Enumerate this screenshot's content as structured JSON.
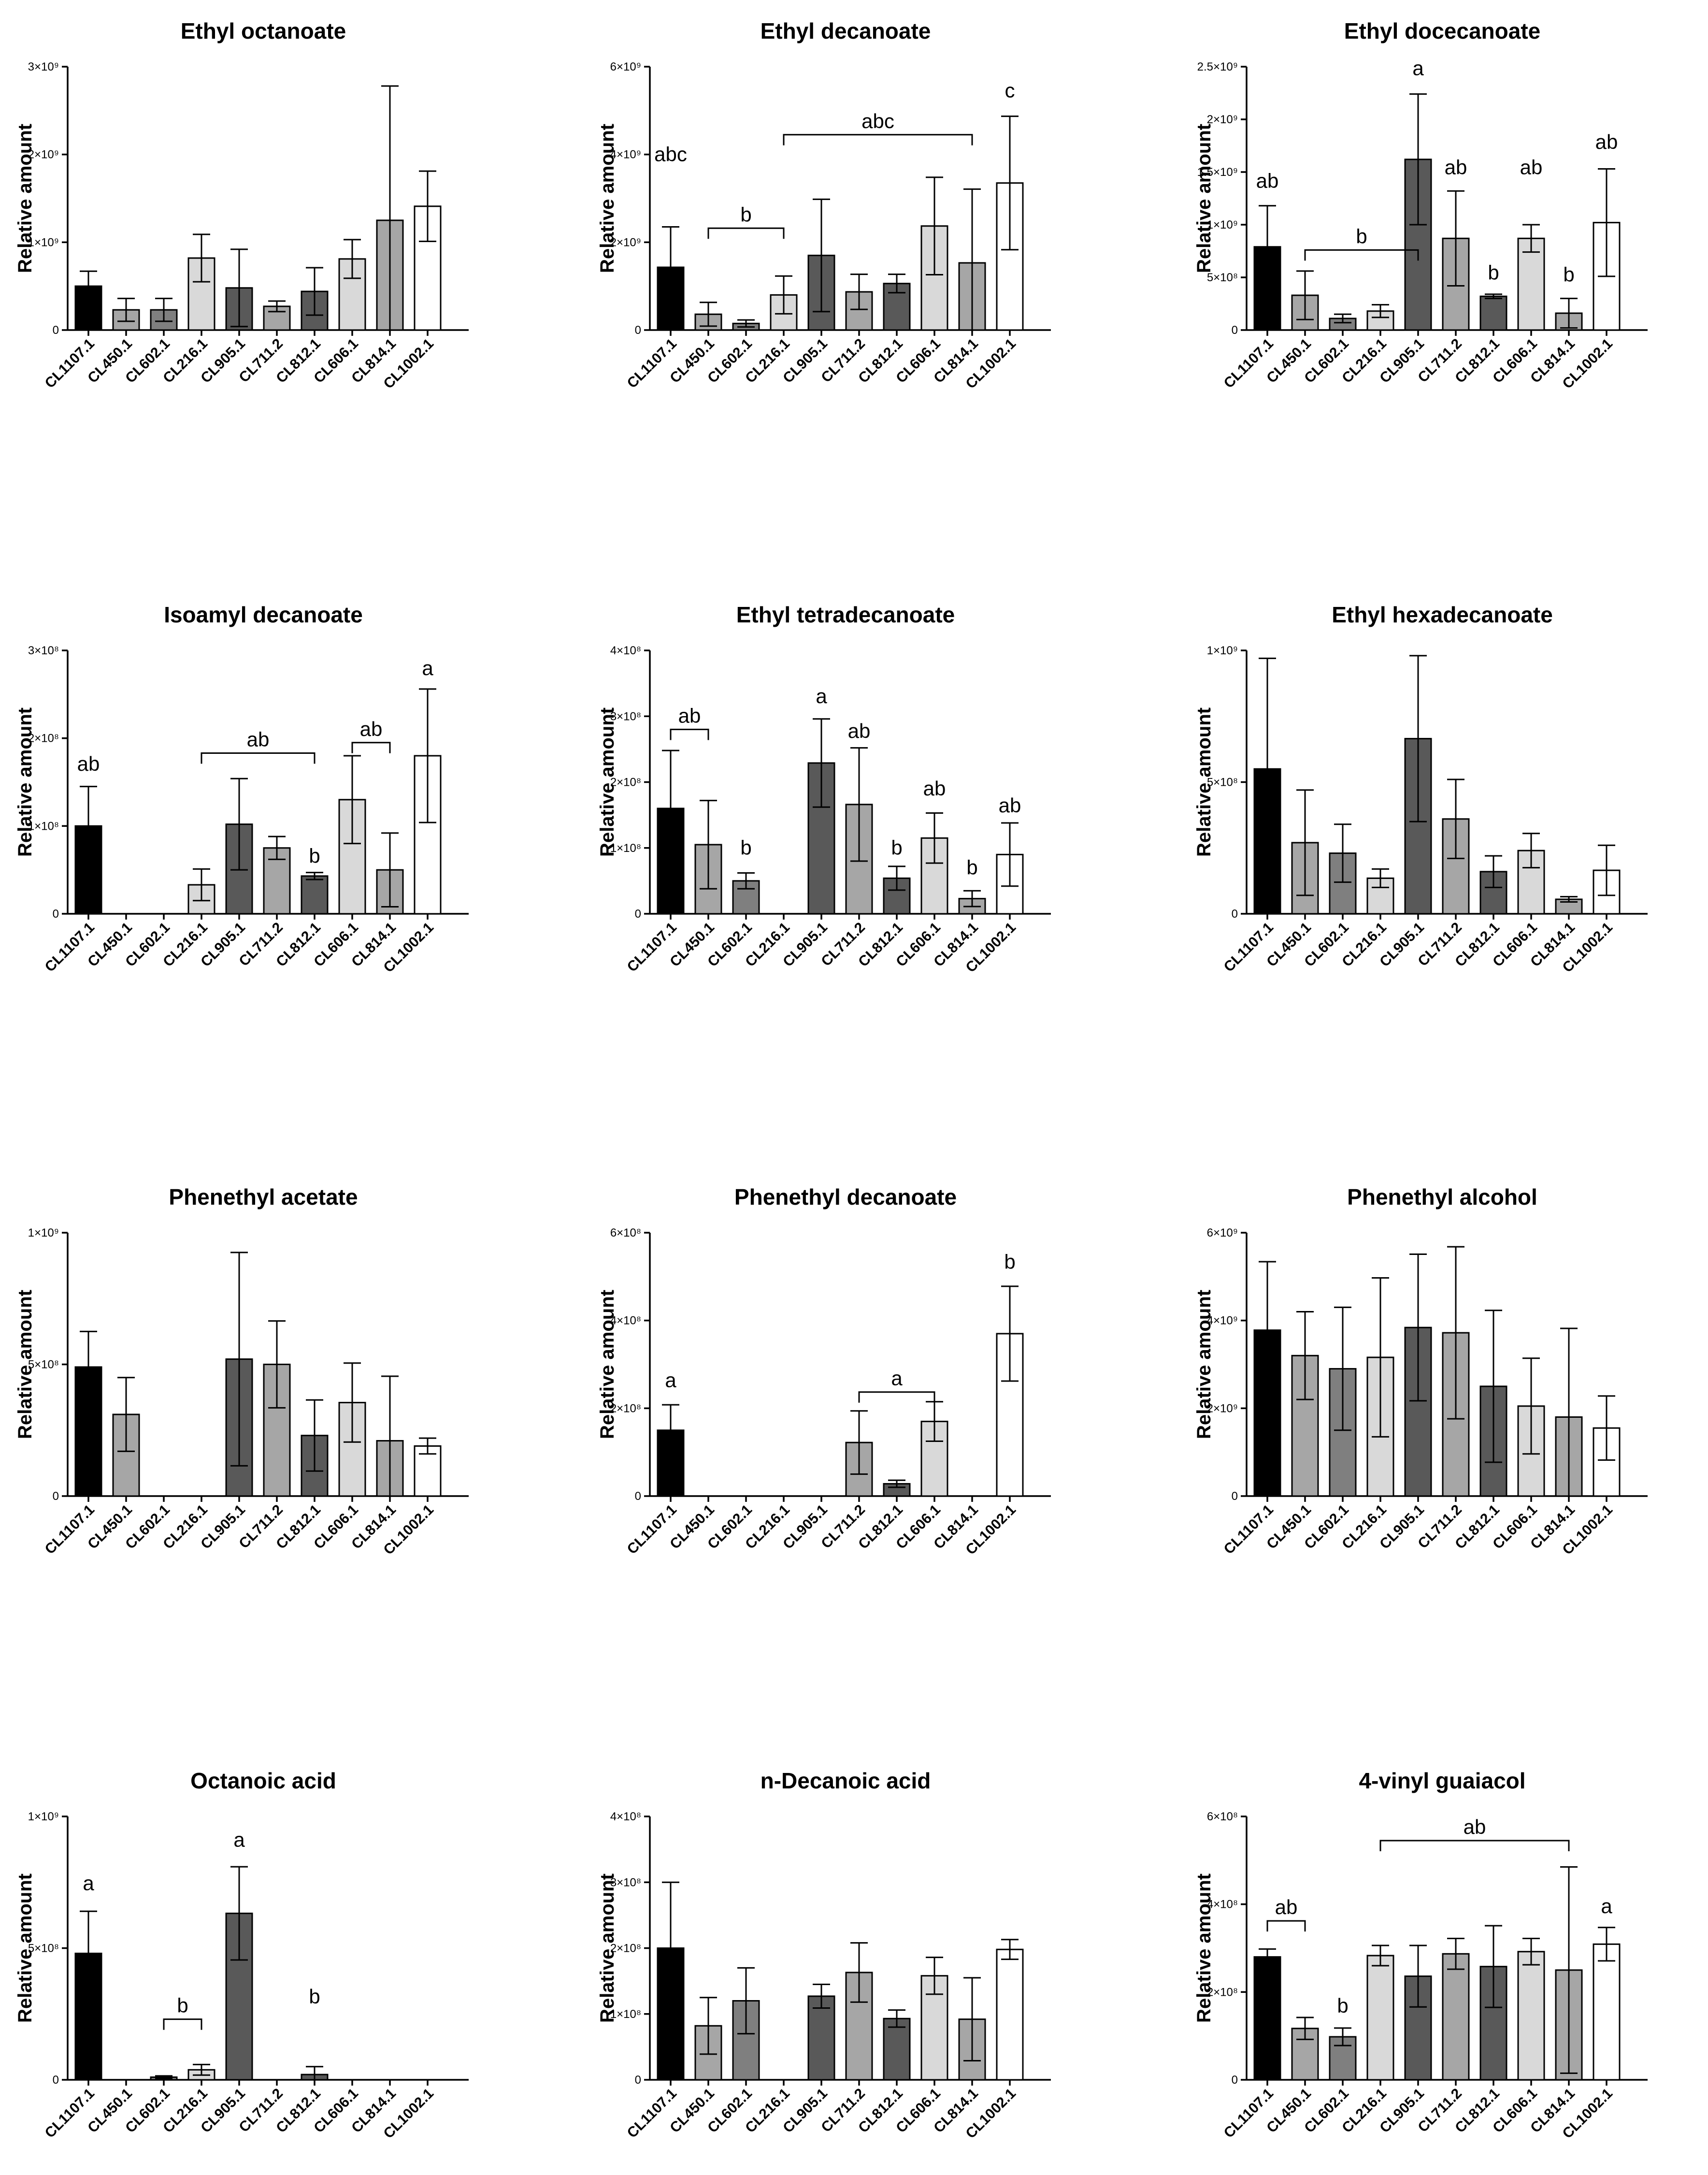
{
  "chart_data": [
    {
      "type": "bar",
      "title": "Ethyl octanoate",
      "ylabel": "Relative amount",
      "categories": [
        "CL1107.1",
        "CL450.1",
        "CL602.1",
        "CL216.1",
        "CL905.1",
        "CL711.2",
        "CL812.1",
        "CL606.1",
        "CL814.1",
        "CL1002.1"
      ],
      "values": [
        500000000,
        230000000,
        230000000,
        820000000,
        480000000,
        270000000,
        440000000,
        810000000,
        1250000000,
        1410000000
      ],
      "errors": [
        170000000,
        130000000,
        130000000,
        270000000,
        440000000,
        60000000,
        270000000,
        220000000,
        1530000000,
        400000000
      ],
      "ylim": [
        0,
        3000000000
      ],
      "yticks": [
        0,
        1000000000,
        2000000000,
        3000000000
      ],
      "ytick_labels": [
        "0",
        "1×10⁹",
        "2×10⁹",
        "3×10⁹"
      ],
      "bar_colors": [
        "#000000",
        "#a6a6a6",
        "#7f7f7f",
        "#d9d9d9",
        "#595959",
        "#a6a6a6",
        "#595959",
        "#d9d9d9",
        "#a6a6a6",
        "#ffffff"
      ],
      "annotations": []
    },
    {
      "type": "bar",
      "title": "Ethyl decanoate",
      "ylabel": "Relative amount",
      "categories": [
        "CL1107.1",
        "CL450.1",
        "CL602.1",
        "CL216.1",
        "CL905.1",
        "CL711.2",
        "CL812.1",
        "CL606.1",
        "CL814.1",
        "CL1002.1"
      ],
      "values": [
        1430000000,
        360000000,
        150000000,
        800000000,
        1700000000,
        870000000,
        1060000000,
        2370000000,
        1530000000,
        3350000000
      ],
      "errors": [
        920000000,
        270000000,
        80000000,
        430000000,
        1280000000,
        400000000,
        210000000,
        1110000000,
        1680000000,
        1520000000
      ],
      "ylim": [
        0,
        6000000000
      ],
      "yticks": [
        0,
        2000000000,
        4000000000,
        6000000000
      ],
      "ytick_labels": [
        "0",
        "2×10⁹",
        "4×10⁹",
        "6×10⁹"
      ],
      "bar_colors": [
        "#000000",
        "#a6a6a6",
        "#7f7f7f",
        "#d9d9d9",
        "#595959",
        "#a6a6a6",
        "#595959",
        "#d9d9d9",
        "#a6a6a6",
        "#ffffff"
      ],
      "annotations": [
        {
          "text": "abc",
          "from": 0,
          "to": 0,
          "y": 3850000000,
          "bracket": false
        },
        {
          "text": "b",
          "from": 1,
          "to": 3,
          "y": 2320000000,
          "bracket": true
        },
        {
          "text": "abc",
          "from": 3,
          "to": 8,
          "y": 4450000000,
          "bracket": true
        },
        {
          "text": "c",
          "from": 9,
          "to": 9,
          "y": 5300000000,
          "bracket": false
        }
      ]
    },
    {
      "type": "bar",
      "title": "Ethyl docecanoate",
      "ylabel": "Relative amount",
      "categories": [
        "CL1107.1",
        "CL450.1",
        "CL602.1",
        "CL216.1",
        "CL905.1",
        "CL711.2",
        "CL812.1",
        "CL606.1",
        "CL814.1",
        "CL1002.1"
      ],
      "values": [
        790000000,
        330000000,
        110000000,
        180000000,
        1620000000,
        870000000,
        320000000,
        870000000,
        160000000,
        1020000000
      ],
      "errors": [
        390000000,
        230000000,
        40000000,
        60000000,
        620000000,
        450000000,
        20000000,
        130000000,
        140000000,
        510000000
      ],
      "ylim": [
        0,
        2500000000
      ],
      "yticks": [
        0,
        500000000,
        1000000000,
        1500000000,
        2000000000,
        2500000000
      ],
      "ytick_labels": [
        "0",
        "5×10⁸",
        "1×10⁹",
        "1.5×10⁹",
        "2×10⁹",
        "2.5×10⁹"
      ],
      "bar_colors": [
        "#000000",
        "#a6a6a6",
        "#7f7f7f",
        "#d9d9d9",
        "#595959",
        "#a6a6a6",
        "#595959",
        "#d9d9d9",
        "#a6a6a6",
        "#ffffff"
      ],
      "annotations": [
        {
          "text": "ab",
          "from": 0,
          "to": 0,
          "y": 1350000000,
          "bracket": false
        },
        {
          "text": "b",
          "from": 1,
          "to": 4,
          "y": 760000000,
          "bracket": true
        },
        {
          "text": "a",
          "from": 4,
          "to": 4,
          "y": 2420000000,
          "bracket": false
        },
        {
          "text": "ab",
          "from": 5,
          "to": 5,
          "y": 1480000000,
          "bracket": false
        },
        {
          "text": "b",
          "from": 6,
          "to": 6,
          "y": 480000000,
          "bracket": false
        },
        {
          "text": "ab",
          "from": 7,
          "to": 7,
          "y": 1480000000,
          "bracket": false
        },
        {
          "text": "b",
          "from": 8,
          "to": 8,
          "y": 460000000,
          "bracket": false
        },
        {
          "text": "ab",
          "from": 9,
          "to": 9,
          "y": 1720000000,
          "bracket": false
        }
      ]
    },
    {
      "type": "bar",
      "title": "Isoamyl decanoate",
      "ylabel": "Relative amount",
      "categories": [
        "CL1107.1",
        "CL450.1",
        "CL602.1",
        "CL216.1",
        "CL905.1",
        "CL711.2",
        "CL812.1",
        "CL606.1",
        "CL814.1",
        "CL1002.1"
      ],
      "values": [
        100000000,
        0,
        0,
        33000000,
        102000000,
        75000000,
        43000000,
        130000000,
        50000000,
        180000000
      ],
      "errors": [
        45000000,
        0,
        0,
        18000000,
        52000000,
        13000000,
        4000000,
        50000000,
        42000000,
        76000000
      ],
      "ylim": [
        0,
        300000000
      ],
      "yticks": [
        0,
        100000000,
        200000000,
        300000000
      ],
      "ytick_labels": [
        "0",
        "1×10⁸",
        "2×10⁸",
        "3×10⁸"
      ],
      "bar_colors": [
        "#000000",
        "#a6a6a6",
        "#7f7f7f",
        "#d9d9d9",
        "#595959",
        "#a6a6a6",
        "#595959",
        "#d9d9d9",
        "#a6a6a6",
        "#ffffff"
      ],
      "annotations": [
        {
          "text": "ab",
          "from": 0,
          "to": 0,
          "y": 163000000,
          "bracket": false
        },
        {
          "text": "ab",
          "from": 3,
          "to": 6,
          "y": 183000000,
          "bracket": true
        },
        {
          "text": "b",
          "from": 6,
          "to": 6,
          "y": 58000000,
          "bracket": false
        },
        {
          "text": "ab",
          "from": 7,
          "to": 8,
          "y": 195000000,
          "bracket": true
        },
        {
          "text": "a",
          "from": 9,
          "to": 9,
          "y": 272000000,
          "bracket": false
        }
      ]
    },
    {
      "type": "bar",
      "title": "Ethyl tetradecanoate",
      "ylabel": "Relative amount",
      "categories": [
        "CL1107.1",
        "CL450.1",
        "CL602.1",
        "CL216.1",
        "CL905.1",
        "CL711.2",
        "CL812.1",
        "CL606.1",
        "CL814.1",
        "CL1002.1"
      ],
      "values": [
        160000000,
        105000000,
        50000000,
        0,
        229000000,
        166000000,
        54000000,
        115000000,
        23000000,
        90000000
      ],
      "errors": [
        88000000,
        67000000,
        12000000,
        0,
        67000000,
        86000000,
        18000000,
        38000000,
        12000000,
        48000000
      ],
      "ylim": [
        0,
        400000000
      ],
      "yticks": [
        0,
        100000000,
        200000000,
        300000000,
        400000000
      ],
      "ytick_labels": [
        "0",
        "1×10⁸",
        "2×10⁸",
        "3×10⁸",
        "4×10⁸"
      ],
      "bar_colors": [
        "#000000",
        "#a6a6a6",
        "#7f7f7f",
        "#d9d9d9",
        "#595959",
        "#a6a6a6",
        "#595959",
        "#d9d9d9",
        "#a6a6a6",
        "#ffffff"
      ],
      "annotations": [
        {
          "text": "ab",
          "from": 0,
          "to": 1,
          "y": 280000000,
          "bracket": true
        },
        {
          "text": "b",
          "from": 2,
          "to": 2,
          "y": 90000000,
          "bracket": false
        },
        {
          "text": "a",
          "from": 4,
          "to": 4,
          "y": 320000000,
          "bracket": false
        },
        {
          "text": "ab",
          "from": 5,
          "to": 5,
          "y": 267000000,
          "bracket": false
        },
        {
          "text": "b",
          "from": 6,
          "to": 6,
          "y": 90000000,
          "bracket": false
        },
        {
          "text": "ab",
          "from": 7,
          "to": 7,
          "y": 180000000,
          "bracket": false
        },
        {
          "text": "b",
          "from": 8,
          "to": 8,
          "y": 60000000,
          "bracket": false
        },
        {
          "text": "ab",
          "from": 9,
          "to": 9,
          "y": 154000000,
          "bracket": false
        }
      ]
    },
    {
      "type": "bar",
      "title": "Ethyl hexadecanoate",
      "ylabel": "Relative amount",
      "categories": [
        "CL1107.1",
        "CL450.1",
        "CL602.1",
        "CL216.1",
        "CL905.1",
        "CL711.2",
        "CL812.1",
        "CL606.1",
        "CL814.1",
        "CL1002.1"
      ],
      "values": [
        550000000,
        270000000,
        230000000,
        135000000,
        665000000,
        360000000,
        160000000,
        240000000,
        55000000,
        165000000
      ],
      "errors": [
        420000000,
        200000000,
        110000000,
        35000000,
        315000000,
        150000000,
        60000000,
        65000000,
        10000000,
        95000000
      ],
      "ylim": [
        0,
        1000000000
      ],
      "yticks": [
        0,
        500000000,
        1000000000
      ],
      "ytick_labels": [
        "0",
        "5×10⁸",
        "1×10⁹"
      ],
      "bar_colors": [
        "#000000",
        "#a6a6a6",
        "#7f7f7f",
        "#d9d9d9",
        "#595959",
        "#a6a6a6",
        "#595959",
        "#d9d9d9",
        "#a6a6a6",
        "#ffffff"
      ],
      "annotations": []
    },
    {
      "type": "bar",
      "title": "Phenethyl acetate",
      "ylabel": "Relative amount",
      "categories": [
        "CL1107.1",
        "CL450.1",
        "CL602.1",
        "CL216.1",
        "CL905.1",
        "CL711.2",
        "CL812.1",
        "CL606.1",
        "CL814.1",
        "CL1002.1"
      ],
      "values": [
        490000000,
        310000000,
        0,
        0,
        520000000,
        500000000,
        230000000,
        355000000,
        210000000,
        190000000
      ],
      "errors": [
        135000000,
        140000000,
        0,
        0,
        405000000,
        165000000,
        135000000,
        150000000,
        245000000,
        30000000
      ],
      "ylim": [
        0,
        1000000000
      ],
      "yticks": [
        0,
        500000000,
        1000000000
      ],
      "ytick_labels": [
        "0",
        "5×10⁸",
        "1×10⁹"
      ],
      "bar_colors": [
        "#000000",
        "#a6a6a6",
        "#7f7f7f",
        "#d9d9d9",
        "#595959",
        "#a6a6a6",
        "#595959",
        "#d9d9d9",
        "#a6a6a6",
        "#ffffff"
      ],
      "annotations": []
    },
    {
      "type": "bar",
      "title": "Phenethyl decanoate",
      "ylabel": "Relative amount",
      "categories": [
        "CL1107.1",
        "CL450.1",
        "CL602.1",
        "CL216.1",
        "CL905.1",
        "CL711.2",
        "CL812.1",
        "CL606.1",
        "CL814.1",
        "CL1002.1"
      ],
      "values": [
        150000000,
        0,
        0,
        0,
        0,
        122000000,
        28000000,
        170000000,
        0,
        370000000
      ],
      "errors": [
        58000000,
        0,
        0,
        0,
        0,
        72000000,
        8000000,
        45000000,
        0,
        108000000
      ],
      "ylim": [
        0,
        600000000
      ],
      "yticks": [
        0,
        200000000,
        400000000,
        600000000
      ],
      "ytick_labels": [
        "0",
        "2×10⁸",
        "4×10⁸",
        "6×10⁸"
      ],
      "bar_colors": [
        "#000000",
        "#a6a6a6",
        "#7f7f7f",
        "#d9d9d9",
        "#595959",
        "#a6a6a6",
        "#595959",
        "#d9d9d9",
        "#a6a6a6",
        "#ffffff"
      ],
      "annotations": [
        {
          "text": "a",
          "from": 0,
          "to": 0,
          "y": 248000000,
          "bracket": false
        },
        {
          "text": "a",
          "from": 5,
          "to": 7,
          "y": 237000000,
          "bracket": true
        },
        {
          "text": "b",
          "from": 9,
          "to": 9,
          "y": 518000000,
          "bracket": false
        }
      ]
    },
    {
      "type": "bar",
      "title": "Phenethyl alcohol",
      "ylabel": "Relative amount",
      "categories": [
        "CL1107.1",
        "CL450.1",
        "CL602.1",
        "CL216.1",
        "CL905.1",
        "CL711.2",
        "CL812.1",
        "CL606.1",
        "CL814.1",
        "CL1002.1"
      ],
      "values": [
        3780000000,
        3200000000,
        2900000000,
        3160000000,
        3840000000,
        3720000000,
        2500000000,
        2050000000,
        1800000000,
        1550000000
      ],
      "errors": [
        1560000000,
        1000000000,
        1400000000,
        1810000000,
        1670000000,
        1960000000,
        1730000000,
        1090000000,
        2020000000,
        730000000
      ],
      "ylim": [
        0,
        6000000000
      ],
      "yticks": [
        0,
        2000000000,
        4000000000,
        6000000000
      ],
      "ytick_labels": [
        "0",
        "2×10⁹",
        "4×10⁹",
        "6×10⁹"
      ],
      "bar_colors": [
        "#000000",
        "#a6a6a6",
        "#7f7f7f",
        "#d9d9d9",
        "#595959",
        "#a6a6a6",
        "#595959",
        "#d9d9d9",
        "#a6a6a6",
        "#ffffff"
      ],
      "annotations": []
    },
    {
      "type": "bar",
      "title": "Octanoic acid",
      "ylabel": "Relative amount",
      "categories": [
        "CL1107.1",
        "CL450.1",
        "CL602.1",
        "CL216.1",
        "CL905.1",
        "CL711.2",
        "CL812.1",
        "CL606.1",
        "CL814.1",
        "CL1002.1"
      ],
      "values": [
        480000000,
        0,
        10000000,
        38000000,
        632000000,
        0,
        20000000,
        0,
        0,
        0
      ],
      "errors": [
        160000000,
        0,
        5000000,
        20000000,
        177000000,
        0,
        30000000,
        0,
        0,
        0
      ],
      "ylim": [
        0,
        1000000000
      ],
      "yticks": [
        0,
        500000000,
        1000000000
      ],
      "ytick_labels": [
        "0",
        "5×10⁸",
        "1×10⁹"
      ],
      "bar_colors": [
        "#000000",
        "#a6a6a6",
        "#7f7f7f",
        "#d9d9d9",
        "#595959",
        "#a6a6a6",
        "#595959",
        "#d9d9d9",
        "#a6a6a6",
        "#ffffff"
      ],
      "annotations": [
        {
          "text": "a",
          "from": 0,
          "to": 0,
          "y": 720000000,
          "bracket": false
        },
        {
          "text": "b",
          "from": 2,
          "to": 3,
          "y": 230000000,
          "bracket": true
        },
        {
          "text": "a",
          "from": 4,
          "to": 4,
          "y": 885000000,
          "bracket": false
        },
        {
          "text": "b",
          "from": 6,
          "to": 6,
          "y": 290000000,
          "bracket": false
        }
      ]
    },
    {
      "type": "bar",
      "title": "n-Decanoic acid",
      "ylabel": "Relative amount",
      "categories": [
        "CL1107.1",
        "CL450.1",
        "CL602.1",
        "CL216.1",
        "CL905.1",
        "CL711.2",
        "CL812.1",
        "CL606.1",
        "CL814.1",
        "CL1002.1"
      ],
      "values": [
        200000000,
        82000000,
        120000000,
        0,
        127000000,
        163000000,
        93000000,
        158000000,
        92000000,
        198000000
      ],
      "errors": [
        100000000,
        43000000,
        50000000,
        0,
        18000000,
        45000000,
        13000000,
        28000000,
        63000000,
        15000000
      ],
      "ylim": [
        0,
        400000000
      ],
      "yticks": [
        0,
        100000000,
        200000000,
        300000000,
        400000000
      ],
      "ytick_labels": [
        "0",
        "1×10⁸",
        "2×10⁸",
        "3×10⁸",
        "4×10⁸"
      ],
      "bar_colors": [
        "#000000",
        "#a6a6a6",
        "#7f7f7f",
        "#d9d9d9",
        "#595959",
        "#a6a6a6",
        "#595959",
        "#d9d9d9",
        "#a6a6a6",
        "#ffffff"
      ],
      "annotations": []
    },
    {
      "type": "bar",
      "title": "4-vinyl guaiacol",
      "ylabel": "Relative amount",
      "categories": [
        "CL1107.1",
        "CL450.1",
        "CL602.1",
        "CL216.1",
        "CL905.1",
        "CL711.2",
        "CL812.1",
        "CL606.1",
        "CL814.1",
        "CL1002.1"
      ],
      "values": [
        280000000,
        117000000,
        98000000,
        283000000,
        236000000,
        287000000,
        258000000,
        292000000,
        250000000,
        309000000
      ],
      "errors": [
        18000000,
        25000000,
        20000000,
        23000000,
        70000000,
        35000000,
        93000000,
        30000000,
        235000000,
        38000000
      ],
      "ylim": [
        0,
        600000000
      ],
      "yticks": [
        0,
        200000000,
        400000000,
        600000000
      ],
      "ytick_labels": [
        "0",
        "2×10⁸",
        "4×10⁸",
        "6×10⁸"
      ],
      "bar_colors": [
        "#000000",
        "#a6a6a6",
        "#7f7f7f",
        "#d9d9d9",
        "#595959",
        "#a6a6a6",
        "#595959",
        "#d9d9d9",
        "#a6a6a6",
        "#ffffff"
      ],
      "annotations": [
        {
          "text": "ab",
          "from": 0,
          "to": 1,
          "y": 362000000,
          "bracket": true
        },
        {
          "text": "b",
          "from": 2,
          "to": 2,
          "y": 153000000,
          "bracket": false
        },
        {
          "text": "ab",
          "from": 3,
          "to": 8,
          "y": 545000000,
          "bracket": true
        },
        {
          "text": "a",
          "from": 9,
          "to": 9,
          "y": 380000000,
          "bracket": false
        }
      ]
    }
  ]
}
